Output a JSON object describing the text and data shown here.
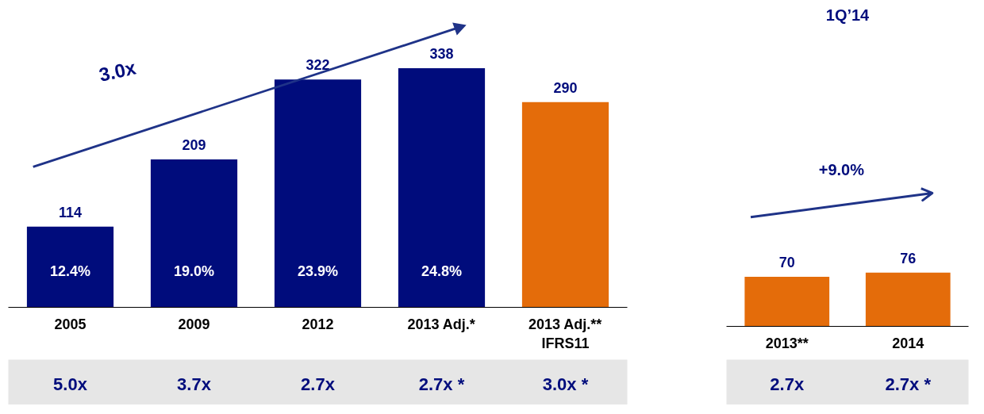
{
  "chart_data": [
    {
      "type": "bar",
      "categories": [
        "2005",
        "2009",
        "2012",
        "2013 Adj.*",
        "2013 Adj.**\nIFRS11"
      ],
      "values": [
        114,
        209,
        322,
        338,
        290
      ],
      "colors": [
        "#000c7c",
        "#000c7c",
        "#000c7c",
        "#000c7c",
        "#e46c0a"
      ],
      "data_labels": true,
      "grid": false,
      "tick_labels": "x",
      "annotations": [
        "3.0x",
        "12.4%",
        "19.0%",
        "23.9%",
        "24.8%",
        "5.0x",
        "3.7x",
        "2.7x",
        "2.7x *",
        "3.0x *"
      ]
    },
    {
      "type": "bar",
      "title": "1Q’14",
      "categories": [
        "2013**",
        "2014"
      ],
      "values": [
        70,
        76
      ],
      "colors": [
        "#e46c0a",
        "#e46c0a"
      ],
      "data_labels": true,
      "grid": false,
      "tick_labels": "x",
      "annotations": [
        "+9.0%",
        "2.7x",
        "2.7x *"
      ]
    }
  ]
}
